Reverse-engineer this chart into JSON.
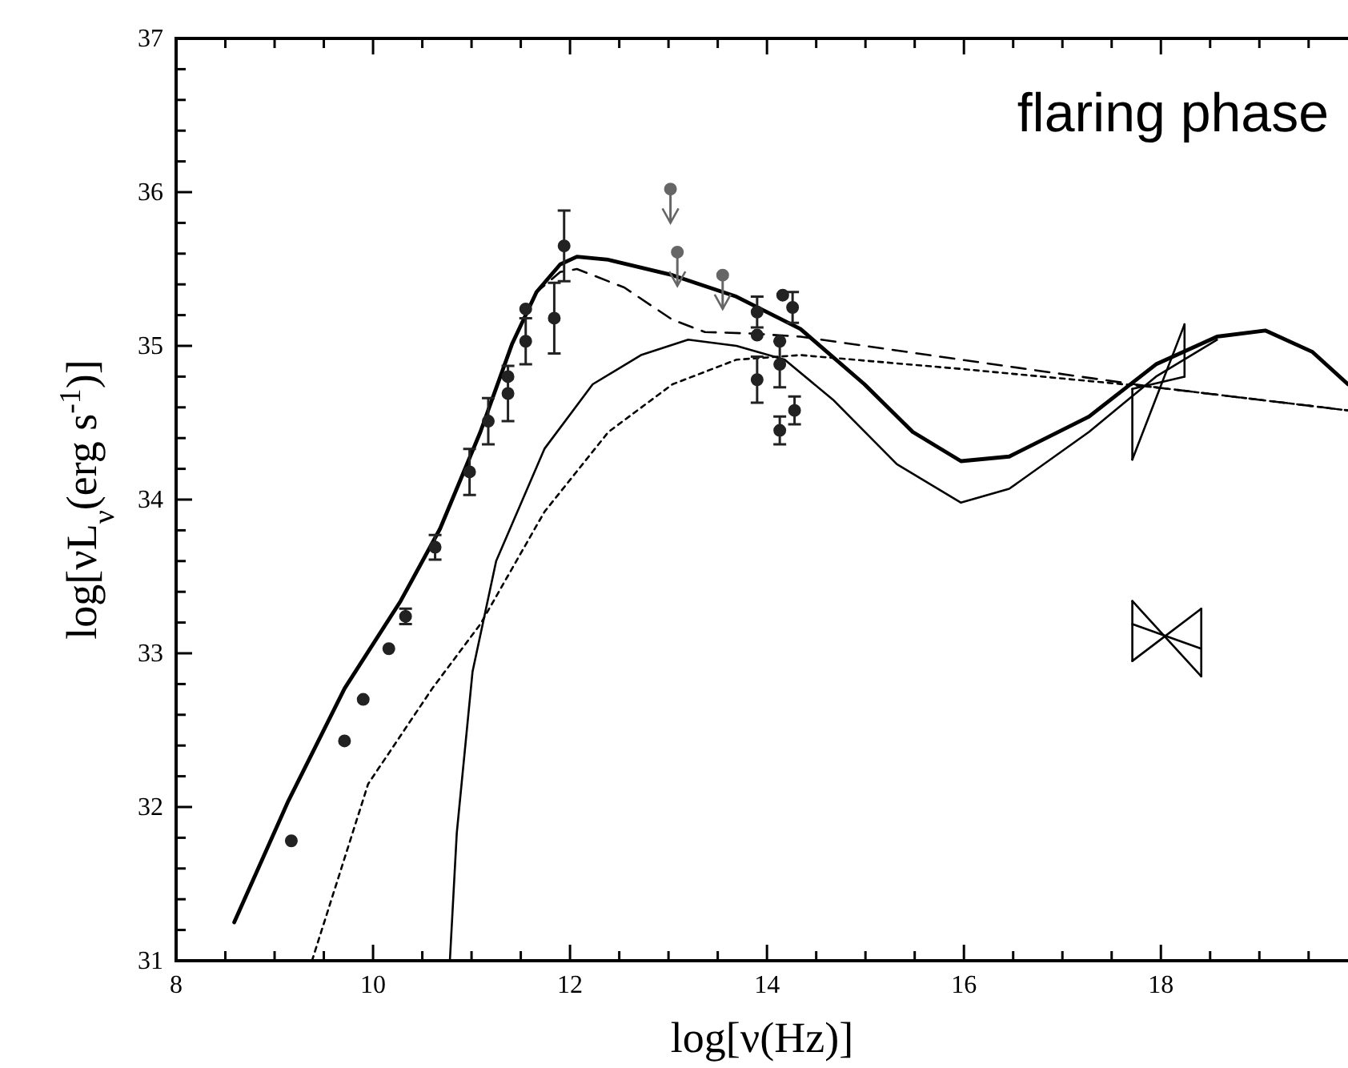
{
  "chart_data": {
    "type": "line",
    "xlabel": "log[ν(Hz)]",
    "ylabel": "log[νL$_{ν}$(erg s$^{-1}$)]",
    "annotations": [
      "flaring phase"
    ],
    "xlim": [
      8,
      19.9
    ],
    "ylim": [
      31,
      37
    ],
    "xticks": [
      8,
      {
        "value": 8.5,
        "label": null
      },
      {
        "value": 9,
        "label": null
      },
      {
        "value": 9.5,
        "label": null
      },
      10,
      {
        "value": 10.5,
        "label": null
      },
      {
        "value": 11,
        "label": null
      },
      {
        "value": 11.5,
        "label": null
      },
      12,
      {
        "value": 12.5,
        "label": null
      },
      {
        "value": 13,
        "label": null
      },
      {
        "value": 13.5,
        "label": null
      },
      14,
      {
        "value": 14.5,
        "label": null
      },
      {
        "value": 15,
        "label": null
      },
      {
        "value": 15.5,
        "label": null
      },
      16,
      {
        "value": 16.5,
        "label": null
      },
      {
        "value": 17,
        "label": null
      },
      {
        "value": 17.5,
        "label": null
      },
      18,
      {
        "value": 18.5,
        "label": null
      },
      {
        "value": 19,
        "label": null
      },
      {
        "value": 19.5,
        "label": null
      }
    ],
    "yticks": [
      31,
      {
        "value": 31.2,
        "label": null
      },
      {
        "value": 31.4,
        "label": null
      },
      {
        "value": 31.6,
        "label": null
      },
      {
        "value": 31.8,
        "label": null
      },
      32,
      {
        "value": 32.2,
        "label": null
      },
      {
        "value": 32.4,
        "label": null
      },
      {
        "value": 32.6,
        "label": null
      },
      {
        "value": 32.8,
        "label": null
      },
      33,
      {
        "value": 33.2,
        "label": null
      },
      {
        "value": 33.4,
        "label": null
      },
      {
        "value": 33.6,
        "label": null
      },
      {
        "value": 33.8,
        "label": null
      },
      34,
      {
        "value": 34.2,
        "label": null
      },
      {
        "value": 34.4,
        "label": null
      },
      {
        "value": 34.6,
        "label": null
      },
      {
        "value": 34.8,
        "label": null
      },
      35,
      {
        "value": 35.2,
        "label": null
      },
      {
        "value": 35.4,
        "label": null
      },
      {
        "value": 35.6,
        "label": null
      },
      {
        "value": 35.8,
        "label": null
      },
      36,
      {
        "value": 36.2,
        "label": null
      },
      {
        "value": 36.4,
        "label": null
      },
      {
        "value": 36.6,
        "label": null
      },
      {
        "value": 36.8,
        "label": null
      },
      37
    ],
    "grid": false,
    "legend": false,
    "series": [
      {
        "color": "#000000",
        "line_style": "solid",
        "x": [
          8.59,
          9.14,
          9.71,
          10.28,
          10.68,
          11.09,
          11.41,
          11.66,
          11.9,
          12.07,
          12.39,
          13.04,
          13.69,
          14.34,
          14.99,
          15.48,
          15.97,
          16.46,
          17.27,
          17.95,
          18.57,
          19.06,
          19.54,
          19.9
        ],
        "values": [
          31.25,
          32.04,
          32.77,
          33.34,
          33.81,
          34.44,
          35.01,
          35.35,
          35.53,
          35.58,
          35.56,
          35.46,
          35.32,
          35.11,
          34.75,
          34.44,
          34.25,
          34.28,
          34.54,
          34.88,
          35.06,
          35.1,
          34.96,
          34.75
        ]
      },
      {
        "color": "#000000",
        "line_style": "dashed",
        "x": [
          8.59,
          9.14,
          9.71,
          10.28,
          10.68,
          11.09,
          11.41,
          11.66,
          11.9,
          12.07,
          12.55,
          13.04,
          13.37,
          13.85,
          14.34,
          15.97,
          17.95,
          19.9
        ],
        "values": [
          31.25,
          32.04,
          32.77,
          33.34,
          33.81,
          34.44,
          35.01,
          35.35,
          35.48,
          35.5,
          35.38,
          35.17,
          35.09,
          35.08,
          35.06,
          34.91,
          34.73,
          34.58
        ]
      },
      {
        "color": "#000000",
        "line_style": "solid",
        "x": [
          10.78,
          10.85,
          11.01,
          11.25,
          11.74,
          12.23,
          12.72,
          13.2,
          13.69,
          14.18,
          14.67,
          15.32,
          15.97,
          16.46,
          17.27,
          17.95,
          18.57
        ],
        "values": [
          31.0,
          31.83,
          32.88,
          33.6,
          34.33,
          34.75,
          34.94,
          35.04,
          35.0,
          34.91,
          34.65,
          34.23,
          33.98,
          34.07,
          34.44,
          34.8,
          35.04
        ]
      },
      {
        "color": "#000000",
        "line_style": "dotted",
        "x": [
          9.38,
          9.95,
          10.6,
          11.09,
          11.74,
          12.39,
          13.04,
          13.69,
          14.34,
          15.97,
          17.95,
          19.9
        ],
        "values": [
          31.0,
          32.15,
          32.77,
          33.19,
          33.92,
          34.44,
          34.75,
          34.91,
          34.94,
          34.85,
          34.73,
          34.58
        ]
      },
      {
        "color": "#000000",
        "line_style": "solid",
        "x": [
          17.71,
          18.24
        ],
        "values": [
          34.72,
          34.8
        ]
      },
      {
        "color": "#000000",
        "line_style": "solid",
        "x": [
          17.71,
          18.24
        ],
        "values": [
          34.26,
          35.14
        ]
      },
      {
        "color": "#000000",
        "line_style": "solid",
        "x": [
          17.71,
          17.71
        ],
        "values": [
          34.26,
          34.72
        ]
      },
      {
        "color": "#000000",
        "line_style": "solid",
        "x": [
          18.24,
          18.24
        ],
        "values": [
          34.8,
          35.14
        ]
      },
      {
        "color": "#000000",
        "line_style": "solid",
        "x": [
          17.71,
          18.41
        ],
        "values": [
          33.34,
          32.85
        ]
      },
      {
        "color": "#000000",
        "line_style": "solid",
        "x": [
          17.71,
          18.41
        ],
        "values": [
          32.95,
          33.29
        ]
      },
      {
        "color": "#000000",
        "line_style": "solid",
        "x": [
          17.71,
          18.41
        ],
        "values": [
          33.19,
          33.03
        ]
      },
      {
        "color": "#000000",
        "line_style": "solid",
        "x": [
          17.71,
          17.71
        ],
        "values": [
          32.95,
          33.34
        ]
      },
      {
        "color": "#000000",
        "line_style": "solid",
        "x": [
          18.41,
          18.41
        ],
        "values": [
          32.85,
          33.29
        ]
      },
      {
        "type": "scatter",
        "color": "#222222",
        "marker": "circle",
        "x": [
          9.17,
          9.71,
          9.9,
          10.16,
          10.33,
          10.63,
          10.98,
          11.17,
          11.37,
          11.37,
          11.55,
          11.55,
          11.84,
          11.94,
          13.9,
          13.9,
          13.9,
          14.16,
          14.26,
          14.13,
          14.13,
          14.28,
          14.13
        ],
        "values": [
          31.78,
          32.43,
          32.7,
          33.03,
          33.24,
          33.69,
          34.18,
          34.51,
          34.8,
          34.69,
          35.24,
          35.03,
          35.18,
          35.65,
          35.22,
          35.07,
          34.78,
          35.33,
          35.25,
          35.03,
          34.88,
          34.58,
          34.45
        ],
        "errors": [
          null,
          null,
          null,
          null,
          0.05,
          0.08,
          0.15,
          0.15,
          null,
          0.18,
          null,
          0.15,
          0.23,
          0.23,
          0.1,
          null,
          0.15,
          null,
          0.1,
          null,
          0.15,
          0.09,
          0.09
        ]
      },
      {
        "type": "scatter",
        "color": "#666666",
        "marker": "circle",
        "x": [
          13.02,
          13.09,
          13.55
        ],
        "values": [
          36.02,
          35.61,
          35.46
        ],
        "errors": [
          [
            35.8,
            36.02
          ],
          [
            35.39,
            35.61
          ],
          [
            35.24,
            35.46
          ]
        ]
      }
    ]
  }
}
